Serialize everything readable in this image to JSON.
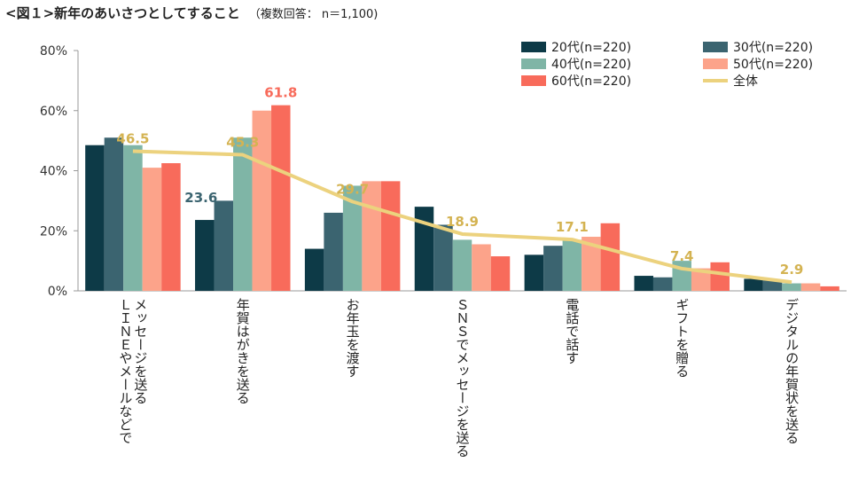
{
  "title": "<図１>新年のあいさつとしてすること",
  "subtitle": "（複数回答： n＝1,100)",
  "chart_data": {
    "type": "bar",
    "title": "<図１>新年のあいさつとしてすること",
    "subtitle": "（複数回答： n＝1,100)",
    "ylim": [
      0,
      80
    ],
    "yticks": [
      "0%",
      "20%",
      "40%",
      "60%",
      "80%"
    ],
    "categories": [
      "ＬＩＮＥやメールなどでメッセージを送る",
      "年賀はがきを送る",
      "お年玉を渡す",
      "ＳＮＳでメッセージを送る",
      "電話で話す",
      "ギフトを贈る",
      "デジタルの年賀状を送る"
    ],
    "category_lines": [
      [
        "ＬＩＮＥやメールなどで",
        "メッセージを送る"
      ],
      [
        "年賀はがきを送る"
      ],
      [
        "お年玉を渡す"
      ],
      [
        "ＳＮＳでメッセージを送る"
      ],
      [
        "電話で話す"
      ],
      [
        "ギフトを贈る"
      ],
      [
        "デジタルの年賀状を送る"
      ]
    ],
    "series": [
      {
        "name": "20代(n=220)",
        "color": "#0d3a47",
        "values": [
          48.5,
          23.6,
          14,
          28,
          12,
          5,
          4
        ]
      },
      {
        "name": "30代(n=220)",
        "color": "#3b6470",
        "values": [
          51,
          30,
          26,
          22,
          15,
          4.5,
          3.5
        ]
      },
      {
        "name": "40代(n=220)",
        "color": "#7fb5a6",
        "values": [
          48.5,
          51,
          35,
          17,
          17,
          10,
          2.5
        ]
      },
      {
        "name": "50代(n=220)",
        "color": "#fca38a",
        "values": [
          41,
          60,
          36.5,
          15.5,
          18,
          7.5,
          2.5
        ]
      },
      {
        "name": "60代(n=220)",
        "color": "#f86b5b",
        "values": [
          42.5,
          61.8,
          36.5,
          11.5,
          22.5,
          9.5,
          1.5
        ]
      }
    ],
    "total": {
      "name": "全体",
      "color": "#ecd27e",
      "values": [
        46.5,
        45.3,
        29.7,
        18.9,
        17.1,
        7.4,
        2.9
      ]
    },
    "annotations": [
      {
        "text": "46.5",
        "category": 0,
        "value": 46.5,
        "color": "#d4b352"
      },
      {
        "text": "45.3",
        "category": 1,
        "value": 45.3,
        "color": "#d4b352"
      },
      {
        "text": "29.7",
        "category": 2,
        "value": 29.7,
        "color": "#d4b352"
      },
      {
        "text": "18.9",
        "category": 3,
        "value": 18.9,
        "color": "#d4b352"
      },
      {
        "text": "17.1",
        "category": 4,
        "value": 17.1,
        "color": "#d4b352"
      },
      {
        "text": "7.4",
        "category": 5,
        "value": 7.4,
        "color": "#d4b352"
      },
      {
        "text": "2.9",
        "category": 6,
        "value": 2.9,
        "color": "#d4b352"
      },
      {
        "text": "23.6",
        "category": 1,
        "series": 0,
        "value": 23.6,
        "color": "#3b6470"
      },
      {
        "text": "61.8",
        "category": 1,
        "series": 4,
        "value": 61.8,
        "color": "#f86b5b"
      }
    ],
    "legend": {
      "position": "top-right",
      "columns": 2
    }
  }
}
